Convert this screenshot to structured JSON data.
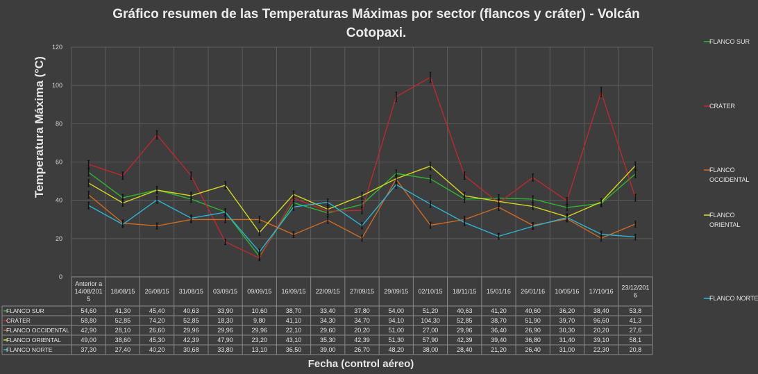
{
  "chart_data": {
    "type": "line",
    "title_lines": [
      "Gráfico resumen de las Temperaturas  Máximas por sector (flancos y cráter) - Volcán",
      "Cotopaxi."
    ],
    "xlabel": "Fecha (control aéreo)",
    "ylabel": "Temperatura Máxima (°C)",
    "ylim": [
      0,
      120
    ],
    "yticks": [
      "0",
      "20",
      "40",
      "60",
      "80",
      "100",
      "120"
    ],
    "grid": true,
    "legend_position": "right",
    "categories": [
      [
        "Anterior a",
        "14/08/201",
        "5"
      ],
      [
        "18/08/15"
      ],
      [
        "26/08/15"
      ],
      [
        "31/08/15"
      ],
      [
        "03/09/15"
      ],
      [
        "09/09/15"
      ],
      [
        "16/09/15"
      ],
      [
        "22/09/15"
      ],
      [
        "27/09/15"
      ],
      [
        "29/09/15"
      ],
      [
        "02/10/15"
      ],
      [
        "18/11/15"
      ],
      [
        "15/01/16"
      ],
      [
        "26/01/16"
      ],
      [
        "10/05/16"
      ],
      [
        "17/10/16"
      ],
      [
        "23/12/201",
        "6"
      ]
    ],
    "series": [
      {
        "name": "FLANCO SUR",
        "color": "#2eb82e",
        "values": [
          54.6,
          41.3,
          45.4,
          40.63,
          33.9,
          10.6,
          38.7,
          33.4,
          37.8,
          54.0,
          51.2,
          40.63,
          41.2,
          40.6,
          36.2,
          38.4,
          53.8
        ],
        "labels": [
          "54,60",
          "41,30",
          "45,40",
          "40,63",
          "33,90",
          "10,60",
          "38,70",
          "33,40",
          "37,80",
          "54,00",
          "51,20",
          "40,63",
          "41,20",
          "40,60",
          "36,20",
          "38,40",
          "53,8"
        ]
      },
      {
        "name": "CRÁTER",
        "color": "#c0282e",
        "values": [
          58.8,
          52.85,
          74.2,
          52.85,
          18.3,
          9.8,
          41.1,
          34.3,
          34.7,
          94.1,
          104.3,
          52.85,
          38.7,
          51.9,
          39.7,
          96.6,
          41.3
        ],
        "labels": [
          "58,80",
          "52,85",
          "74,20",
          "52,85",
          "18,30",
          "9,80",
          "41,10",
          "34,30",
          "34,70",
          "94,10",
          "104,30",
          "52,85",
          "38,70",
          "51,90",
          "39,70",
          "96,60",
          "41,3"
        ]
      },
      {
        "name": "FLANCO OCCIDENTAL",
        "color": "#d26a1e",
        "values": [
          42.9,
          28.1,
          26.6,
          29.96,
          29.96,
          29.96,
          22.1,
          29.6,
          20.2,
          51.0,
          27.0,
          29.96,
          36.4,
          26.9,
          30.3,
          20.2,
          27.6
        ],
        "labels": [
          "42,90",
          "28,10",
          "26,60",
          "29,96",
          "29,96",
          "29,96",
          "22,10",
          "29,60",
          "20,20",
          "51,00",
          "27,00",
          "29,96",
          "36,40",
          "26,90",
          "30,30",
          "20,20",
          "27,6"
        ]
      },
      {
        "name": "FLANCO ORIENTAL",
        "color": "#d8d820",
        "values": [
          49.0,
          38.6,
          45.3,
          42.39,
          47.9,
          23.2,
          43.1,
          35.3,
          42.39,
          51.3,
          57.9,
          42.39,
          39.4,
          36.8,
          31.4,
          39.1,
          58.1
        ],
        "labels": [
          "49,00",
          "38,60",
          "45,30",
          "42,39",
          "47,90",
          "23,20",
          "43,10",
          "35,30",
          "42,39",
          "51,30",
          "57,90",
          "42,39",
          "39,40",
          "36,80",
          "31,40",
          "39,10",
          "58,1"
        ]
      },
      {
        "name": "FLANCO NORTE",
        "color": "#29b6d6",
        "values": [
          37.3,
          27.4,
          40.2,
          30.68,
          33.8,
          13.1,
          36.5,
          39.0,
          26.7,
          48.2,
          38.0,
          28.4,
          21.2,
          26.4,
          31.0,
          22.3,
          20.8
        ],
        "labels": [
          "37,30",
          "27,40",
          "40,20",
          "30,68",
          "33,80",
          "13,10",
          "36,50",
          "39,00",
          "26,70",
          "48,20",
          "38,00",
          "28,40",
          "21,20",
          "26,40",
          "31,00",
          "22,30",
          "20,8"
        ]
      }
    ]
  }
}
